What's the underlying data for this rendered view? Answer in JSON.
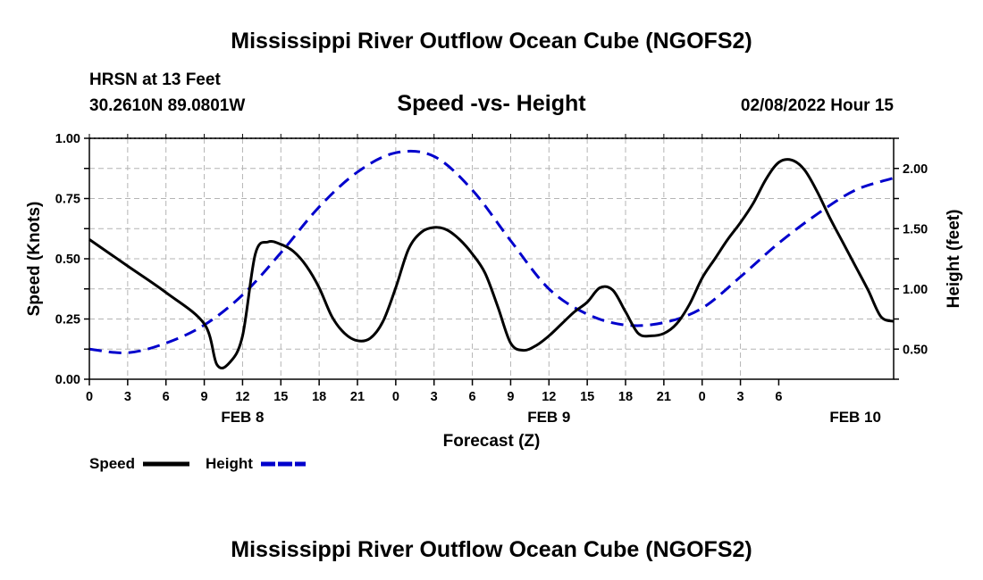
{
  "page_title": "Mississippi River Outflow Ocean Cube (NGOFS2)",
  "footer_title": "Mississippi River Outflow Ocean Cube (NGOFS2)",
  "station": {
    "name": "HRSN at 13 Feet",
    "coords": "30.2610N  89.0801W",
    "timestamp": "02/08/2022 Hour 15"
  },
  "colors": {
    "speed": "#000000",
    "height": "#0000cc",
    "grid": "#b4b4b4"
  },
  "chart_data": {
    "type": "line",
    "title": "Speed -vs- Height",
    "xlabel": "Forecast (Z)",
    "ylabel_left": "Speed (Knots)",
    "ylabel_right": "Height (feet)",
    "x_unit": "hours from FEB 8 00Z",
    "xlim": [
      -9,
      54
    ],
    "ylim_left": [
      0,
      1
    ],
    "ylim_right": [
      0.25,
      2.25
    ],
    "x_ticks": [
      {
        "x": -9,
        "label": "0"
      },
      {
        "x": -6,
        "label": "3"
      },
      {
        "x": -3,
        "label": "6"
      },
      {
        "x": 0,
        "label": "9"
      },
      {
        "x": 3,
        "label": "12"
      },
      {
        "x": 6,
        "label": "15"
      },
      {
        "x": 9,
        "label": "18"
      },
      {
        "x": 12,
        "label": "21"
      },
      {
        "x": 15,
        "label": "0"
      },
      {
        "x": 18,
        "label": "3"
      },
      {
        "x": 21,
        "label": "6"
      },
      {
        "x": 24,
        "label": "9"
      },
      {
        "x": 27,
        "label": "12"
      },
      {
        "x": 30,
        "label": "15"
      },
      {
        "x": 33,
        "label": "18"
      },
      {
        "x": 36,
        "label": "21"
      },
      {
        "x": 39,
        "label": "0"
      },
      {
        "x": 42,
        "label": "3"
      },
      {
        "x": 45,
        "label": "6"
      }
    ],
    "date_labels": [
      {
        "x": 3,
        "label": "FEB 8"
      },
      {
        "x": 27,
        "label": "FEB 9"
      },
      {
        "x": 51,
        "label": "FEB 10"
      }
    ],
    "y_ticks_left": [
      {
        "v": 0,
        "label": "0.00"
      },
      {
        "v": 0.25,
        "label": "0.25"
      },
      {
        "v": 0.5,
        "label": "0.50"
      },
      {
        "v": 0.75,
        "label": "0.75"
      },
      {
        "v": 1,
        "label": "1.00"
      }
    ],
    "y_ticks_right": [
      {
        "v": 0.5,
        "label": "0.50"
      },
      {
        "v": 1.0,
        "label": "1.00"
      },
      {
        "v": 1.5,
        "label": "1.50"
      },
      {
        "v": 2.0,
        "label": "2.00"
      }
    ],
    "series": [
      {
        "name": "Speed",
        "axis": "left",
        "style": "solid",
        "x": [
          -9,
          -6,
          -3,
          0,
          1,
          2,
          3,
          4,
          5,
          6,
          7,
          8,
          9,
          10,
          11,
          12,
          13,
          14,
          15,
          16,
          17,
          18,
          19,
          20,
          21,
          22,
          23,
          24,
          25,
          26,
          27,
          28,
          29,
          30,
          31,
          32,
          33,
          34,
          35,
          36,
          37,
          38,
          39,
          40,
          41,
          42,
          43,
          44,
          45,
          46,
          47,
          48,
          49,
          50,
          51,
          52,
          53,
          54
        ],
        "values": [
          0.58,
          0.47,
          0.36,
          0.23,
          0.06,
          0.07,
          0.18,
          0.52,
          0.57,
          0.56,
          0.53,
          0.47,
          0.38,
          0.26,
          0.19,
          0.16,
          0.17,
          0.24,
          0.38,
          0.54,
          0.61,
          0.63,
          0.62,
          0.58,
          0.52,
          0.44,
          0.3,
          0.15,
          0.12,
          0.14,
          0.18,
          0.23,
          0.28,
          0.32,
          0.38,
          0.37,
          0.28,
          0.19,
          0.18,
          0.19,
          0.23,
          0.31,
          0.42,
          0.5,
          0.58,
          0.65,
          0.73,
          0.83,
          0.9,
          0.91,
          0.87,
          0.78,
          0.67,
          0.57,
          0.47,
          0.37,
          0.26,
          0.24
        ]
      },
      {
        "name": "Height",
        "axis": "right",
        "style": "dashed",
        "x": [
          -9,
          -6,
          -3,
          0,
          3,
          6,
          9,
          12,
          15,
          18,
          21,
          24,
          27,
          30,
          33,
          36,
          39,
          42,
          45,
          48,
          51,
          54
        ],
        "values": [
          0.5,
          0.47,
          0.55,
          0.7,
          0.95,
          1.3,
          1.68,
          1.97,
          2.13,
          2.1,
          1.82,
          1.4,
          1.0,
          0.79,
          0.7,
          0.72,
          0.84,
          1.1,
          1.38,
          1.62,
          1.82,
          1.92
        ]
      }
    ]
  },
  "legend": [
    {
      "label": "Speed",
      "color": "#000000",
      "style": "solid"
    },
    {
      "label": "Height",
      "color": "#0000cc",
      "style": "dashed"
    }
  ]
}
